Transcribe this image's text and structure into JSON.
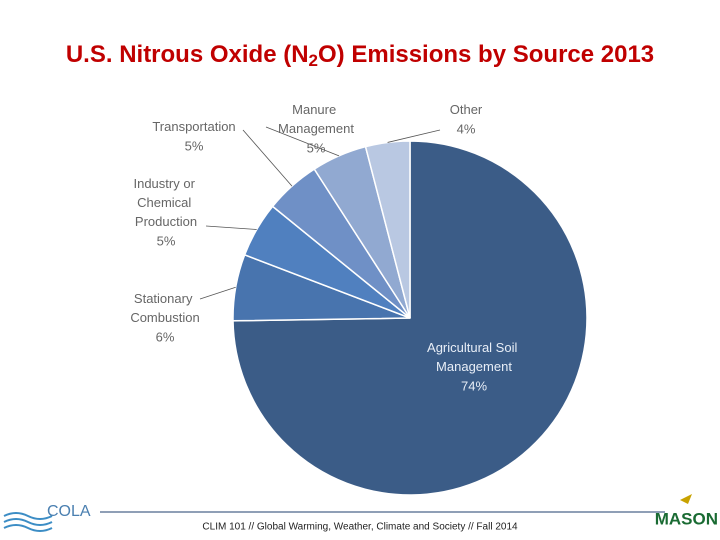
{
  "chart_data": {
    "type": "pie",
    "title_parts": [
      "U.S. Nitrous Oxide (N",
      "2",
      "O) Emissions by Source 2013"
    ],
    "categories": [
      "Agricultural Soil Management",
      "Stationary Combustion",
      "Industry or Chemical Production",
      "Transportation",
      "Manure Management",
      "Other"
    ],
    "values": [
      74,
      6,
      5,
      5,
      5,
      4
    ],
    "value_labels": [
      "74%",
      "6%",
      "5%",
      "5%",
      "5%",
      "4%"
    ],
    "colors": [
      "#3b5c87",
      "#4874ae",
      "#5080bf",
      "#6f90c6",
      "#91a9d1",
      "#b9c8e2"
    ]
  },
  "footer": {
    "text": "CLIM 101 // Global Warming, Weather, Climate and Society // Fall 2014",
    "left_logo": "COLA",
    "right_logo": "MASON"
  }
}
